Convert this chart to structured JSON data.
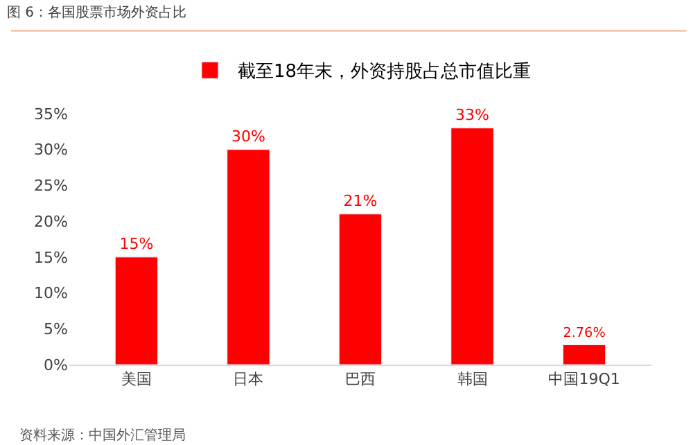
{
  "chart_data": {
    "type": "bar",
    "title": "图 6：各国股票市场外资占比",
    "categories": [
      "美国",
      "日本",
      "巴西",
      "韩国",
      "中国19Q1"
    ],
    "series": [
      {
        "name": "截至18年末，外资持股占总市值比重",
        "color": "#ff0000",
        "values": [
          15,
          30,
          21,
          33,
          2.76
        ],
        "value_labels": [
          "15%",
          "30%",
          "21%",
          "33%",
          "2.76%"
        ]
      }
    ],
    "ylim": [
      0,
      35
    ],
    "yticks": [
      {
        "value": 0,
        "label": "0%"
      },
      {
        "value": 5,
        "label": "5%"
      },
      {
        "value": 10,
        "label": "10%"
      },
      {
        "value": 15,
        "label": "15%"
      },
      {
        "value": 20,
        "label": "20%"
      },
      {
        "value": 25,
        "label": "25%"
      },
      {
        "value": 30,
        "label": "30%"
      },
      {
        "value": 35,
        "label": "35%"
      }
    ],
    "legend": "top",
    "annotations": [
      "资料来源：中国外汇管理局"
    ]
  }
}
